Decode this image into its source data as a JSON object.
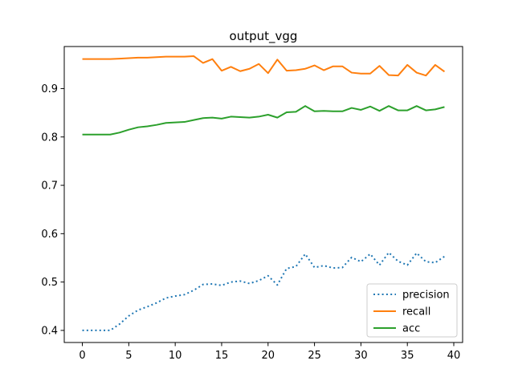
{
  "chart_data": {
    "type": "line",
    "title": "output_vgg",
    "xlabel": "",
    "ylabel": "",
    "xlim": [
      -1.95,
      40.95
    ],
    "ylim": [
      0.375,
      0.987
    ],
    "xticks": [
      0,
      5,
      10,
      15,
      20,
      25,
      30,
      35,
      40
    ],
    "yticks": [
      0.4,
      0.5,
      0.6,
      0.7,
      0.8,
      0.9
    ],
    "grid": false,
    "legend_position": "lower-right",
    "x": [
      0,
      1,
      2,
      3,
      4,
      5,
      6,
      7,
      8,
      9,
      10,
      11,
      12,
      13,
      14,
      15,
      16,
      17,
      18,
      19,
      20,
      21,
      22,
      23,
      24,
      25,
      26,
      27,
      28,
      29,
      30,
      31,
      32,
      33,
      34,
      35,
      36,
      37,
      38,
      39
    ],
    "series": [
      {
        "name": "precision",
        "color": "#1f77b4",
        "style": "dotted",
        "values": [
          0.4,
          0.4,
          0.4,
          0.4,
          0.413,
          0.43,
          0.442,
          0.449,
          0.457,
          0.467,
          0.471,
          0.474,
          0.483,
          0.495,
          0.496,
          0.493,
          0.5,
          0.502,
          0.497,
          0.503,
          0.513,
          0.494,
          0.528,
          0.532,
          0.558,
          0.53,
          0.534,
          0.529,
          0.53,
          0.551,
          0.542,
          0.558,
          0.535,
          0.561,
          0.543,
          0.535,
          0.56,
          0.542,
          0.54,
          0.553
        ]
      },
      {
        "name": "recall",
        "color": "#ff7f0e",
        "style": "solid",
        "values": [
          0.961,
          0.961,
          0.961,
          0.961,
          0.962,
          0.963,
          0.964,
          0.964,
          0.965,
          0.966,
          0.966,
          0.966,
          0.967,
          0.953,
          0.961,
          0.937,
          0.945,
          0.936,
          0.941,
          0.951,
          0.932,
          0.96,
          0.937,
          0.938,
          0.941,
          0.948,
          0.938,
          0.946,
          0.946,
          0.933,
          0.931,
          0.931,
          0.947,
          0.928,
          0.927,
          0.949,
          0.933,
          0.927,
          0.949,
          0.935
        ]
      },
      {
        "name": "acc",
        "color": "#2ca02c",
        "style": "solid",
        "values": [
          0.805,
          0.805,
          0.805,
          0.805,
          0.809,
          0.815,
          0.82,
          0.822,
          0.825,
          0.829,
          0.83,
          0.831,
          0.835,
          0.839,
          0.84,
          0.838,
          0.842,
          0.841,
          0.84,
          0.842,
          0.846,
          0.84,
          0.851,
          0.852,
          0.864,
          0.853,
          0.854,
          0.853,
          0.853,
          0.86,
          0.856,
          0.863,
          0.854,
          0.864,
          0.855,
          0.855,
          0.864,
          0.855,
          0.857,
          0.862
        ]
      }
    ]
  }
}
